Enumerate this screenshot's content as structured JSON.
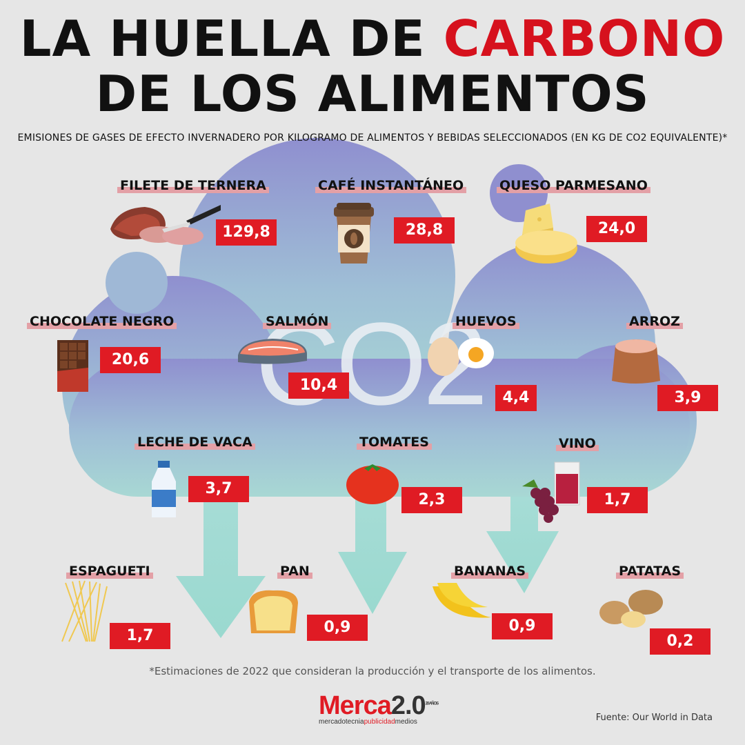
{
  "title": {
    "line1_prefix": "LA HUELLA DE ",
    "line1_accent": "CARBONO",
    "line2": "DE LOS ALIMENTOS"
  },
  "subtitle": "EMISIONES DE GASES DE EFECTO INVERNADERO POR KILOGRAMO DE ALIMENTOS Y BEBIDAS SELECCIONADOS (EN KG DE CO2 EQUIVALENTE)*",
  "cloud_text": "CO2",
  "colors": {
    "accent": "#d6111d",
    "value_box": "#e01b24",
    "label_underline": "#e3a0a6",
    "background": "#e6e6e6"
  },
  "chart_data": {
    "type": "table",
    "title": "LA HUELLA DE CARBONO DE LOS ALIMENTOS",
    "unit": "kg de CO2 equivalente por kg",
    "items": [
      {
        "label": "FILETE DE TERNERA",
        "value": 129.8,
        "display": "129,8",
        "icon": "beef-steak-icon"
      },
      {
        "label": "CAFÉ INSTANTÁNEO",
        "value": 28.8,
        "display": "28,8",
        "icon": "coffee-cup-icon"
      },
      {
        "label": "QUESO PARMESANO",
        "value": 24.0,
        "display": "24,0",
        "icon": "cheese-icon"
      },
      {
        "label": "CHOCOLATE NEGRO",
        "value": 20.6,
        "display": "20,6",
        "icon": "chocolate-bar-icon"
      },
      {
        "label": "SALMÓN",
        "value": 10.4,
        "display": "10,4",
        "icon": "salmon-steak-icon"
      },
      {
        "label": "HUEVOS",
        "value": 4.4,
        "display": "4,4",
        "icon": "eggs-icon"
      },
      {
        "label": "ARROZ",
        "value": 3.9,
        "display": "3,9",
        "icon": "rice-sack-icon"
      },
      {
        "label": "LECHE DE VACA",
        "value": 3.7,
        "display": "3,7",
        "icon": "milk-bottle-icon"
      },
      {
        "label": "TOMATES",
        "value": 2.3,
        "display": "2,3",
        "icon": "tomato-icon"
      },
      {
        "label": "VINO",
        "value": 1.7,
        "display": "1,7",
        "icon": "wine-grapes-icon"
      },
      {
        "label": "ESPAGUETI",
        "value": 1.7,
        "display": "1,7",
        "icon": "spaghetti-icon"
      },
      {
        "label": "PAN",
        "value": 0.9,
        "display": "0,9",
        "icon": "bread-icon"
      },
      {
        "label": "BANANAS",
        "value": 0.9,
        "display": "0,9",
        "icon": "bananas-icon"
      },
      {
        "label": "PATATAS",
        "value": 0.2,
        "display": "0,2",
        "icon": "potatoes-icon"
      }
    ]
  },
  "footnote": "*Estimaciones de 2022 que consideran la producción y el transporte de los alimentos.",
  "logo": {
    "main": "Merca",
    "version": "2.0",
    "tag": "20 AÑOS",
    "sub_a": "mercadotecnia",
    "sub_b": "publicidad",
    "sub_c": "medios"
  },
  "source": "Fuente: Our World in Data"
}
